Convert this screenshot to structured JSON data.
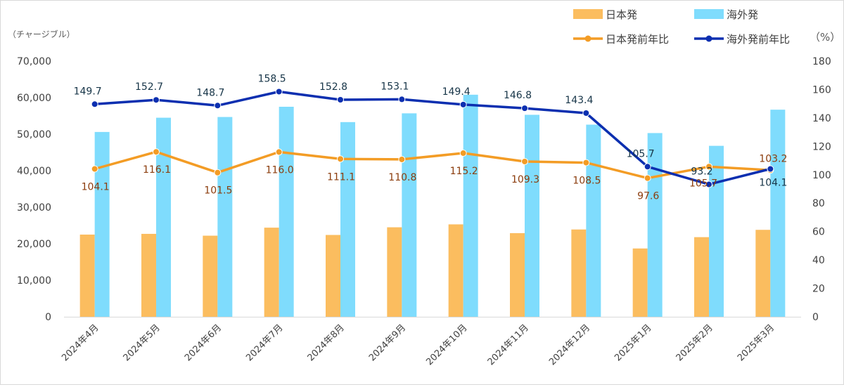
{
  "chart_data": {
    "type": "bar",
    "categories": [
      "2024年4月",
      "2024年5月",
      "2024年6月",
      "2024年7月",
      "2024年8月",
      "2024年9月",
      "2024年10月",
      "2024年11月",
      "2024年12月",
      "2025年1月",
      "2025年2月",
      "2025年3月"
    ],
    "left_axis_unit": "（チャージブル）",
    "right_axis_unit": "（%）",
    "ylim_left": [
      0,
      70000
    ],
    "ylim_right": [
      0,
      180
    ],
    "yticks_left": [
      0,
      10000,
      20000,
      30000,
      40000,
      50000,
      60000,
      70000
    ],
    "yticks_right": [
      0,
      20,
      40,
      60,
      80,
      100,
      120,
      140,
      160,
      180
    ],
    "grid": false,
    "legend_position": "top-right",
    "series": [
      {
        "name": "日本発",
        "type": "bar",
        "axis": "left",
        "color": "#fbbd5f",
        "values": [
          22500,
          22700,
          22200,
          24400,
          22400,
          24500,
          25300,
          22900,
          23900,
          18700,
          21800,
          23800
        ]
      },
      {
        "name": "海外発",
        "type": "bar",
        "axis": "left",
        "color": "#7fdcfd",
        "values": [
          50600,
          54500,
          54700,
          57500,
          53300,
          55700,
          60800,
          55300,
          52600,
          50300,
          46800,
          56700
        ]
      },
      {
        "name": "日本発前年比",
        "type": "line",
        "axis": "right",
        "color": "#f39c25",
        "label_color": "#8b3c0c",
        "values": [
          104.1,
          116.1,
          101.5,
          116.0,
          111.1,
          110.8,
          115.2,
          109.3,
          108.5,
          97.6,
          105.7,
          103.2
        ],
        "labels": [
          "104.1",
          "116.1",
          "101.5",
          "116.0",
          "111.1",
          "110.8",
          "115.2",
          "109.3",
          "108.5",
          "97.6",
          "105.7",
          "103.2"
        ]
      },
      {
        "name": "海外発前年比",
        "type": "line",
        "axis": "right",
        "color": "#0c2fb0",
        "label_color": "#173548",
        "values": [
          149.7,
          152.7,
          148.7,
          158.5,
          152.8,
          153.1,
          149.4,
          146.8,
          143.4,
          105.7,
          93.2,
          104.1
        ],
        "labels": [
          "149.7",
          "152.7",
          "148.7",
          "158.5",
          "152.8",
          "153.1",
          "149.4",
          "146.8",
          "143.4",
          "105.7",
          "93.2",
          "104.1"
        ]
      }
    ]
  }
}
